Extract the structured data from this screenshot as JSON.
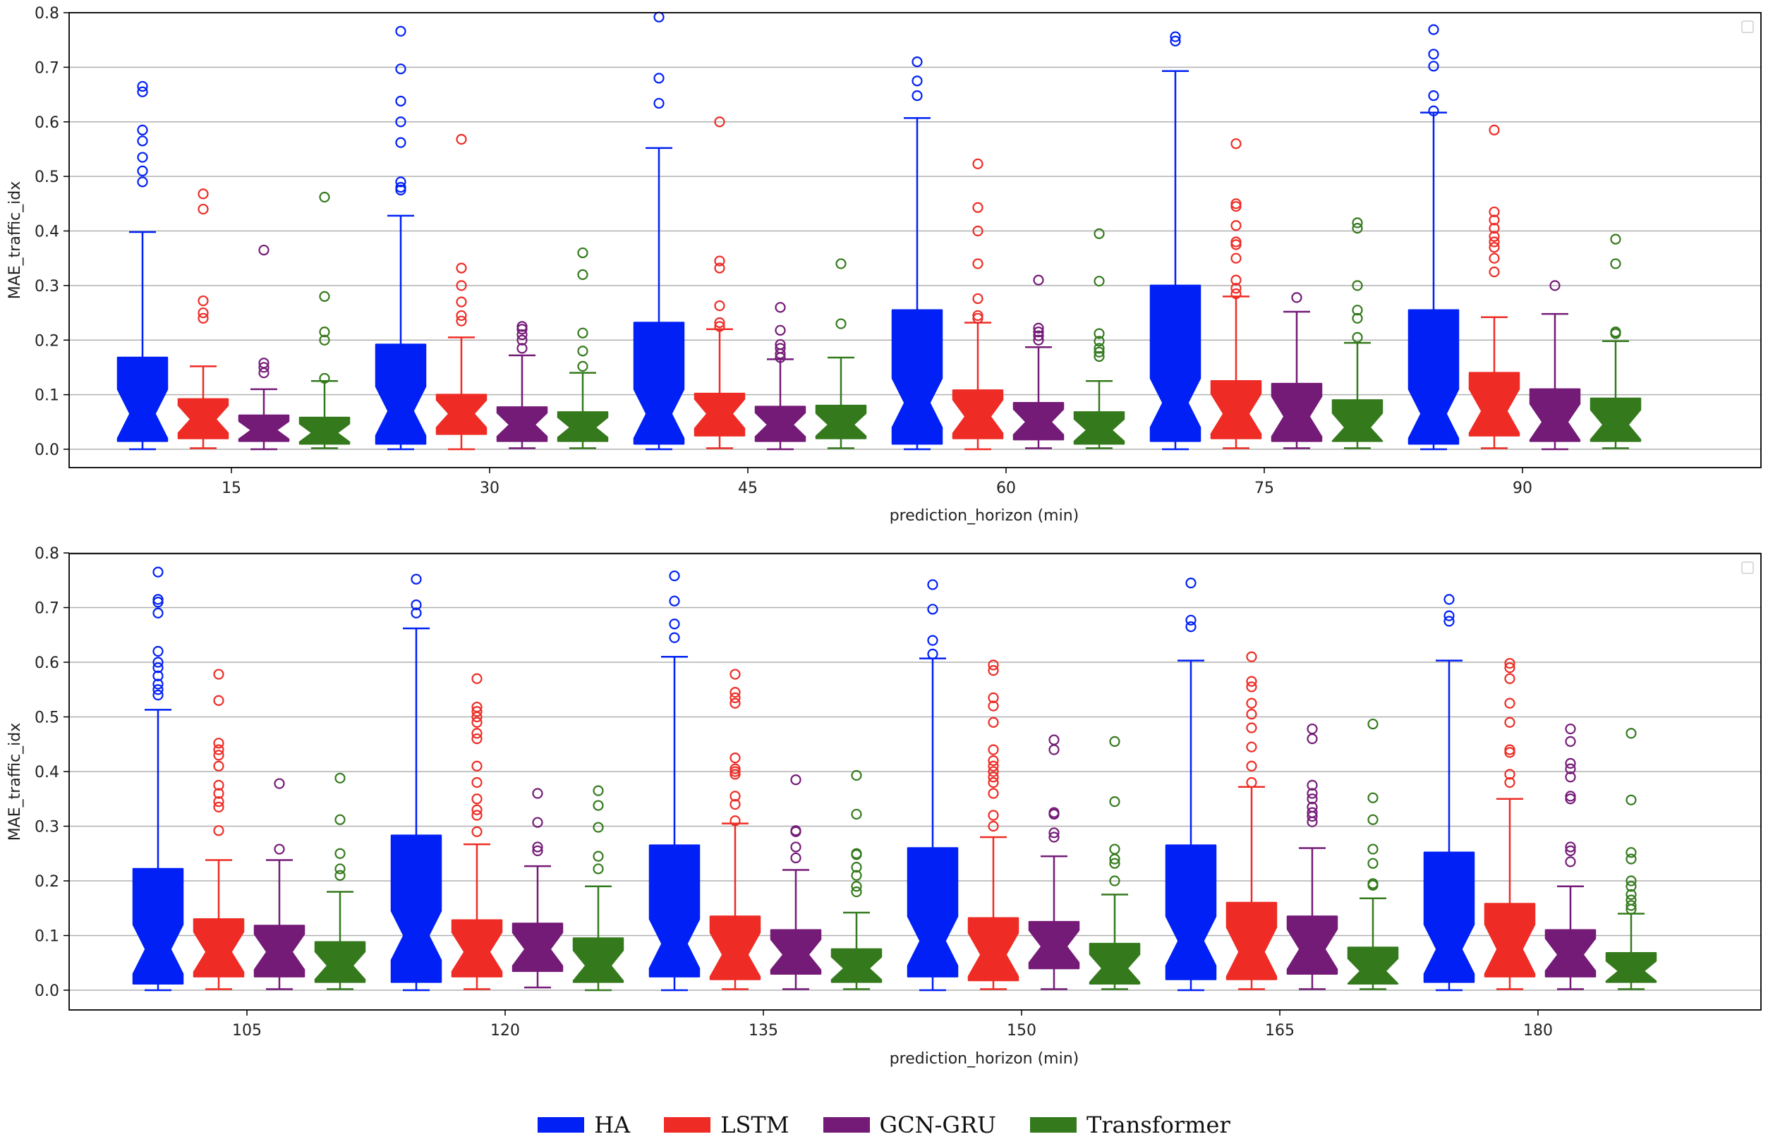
{
  "chart_data": [
    {
      "type": "box",
      "xlabel": "prediction_horizon (min)",
      "ylabel": "MAE_traffic_idx",
      "ylim": [
        0,
        0.8
      ],
      "yticks": [
        "0.0",
        "0.1",
        "0.2",
        "0.3",
        "0.4",
        "0.5",
        "0.6",
        "0.7",
        "0.8"
      ],
      "categories": [
        "15",
        "30",
        "45",
        "60",
        "75",
        "90"
      ],
      "series": [
        {
          "name": "HA",
          "boxes": [
            {
              "whislo": 0.0,
              "q1": 0.015,
              "med": 0.065,
              "q3": 0.168,
              "whishi": 0.398,
              "fliers": [
                0.49,
                0.51,
                0.535,
                0.565,
                0.585,
                0.655,
                0.665
              ]
            },
            {
              "whislo": 0.0,
              "q1": 0.01,
              "med": 0.07,
              "q3": 0.192,
              "whishi": 0.428,
              "fliers": [
                0.475,
                0.48,
                0.49,
                0.562,
                0.6,
                0.638,
                0.697,
                0.766
              ]
            },
            {
              "whislo": 0.0,
              "q1": 0.01,
              "med": 0.065,
              "q3": 0.232,
              "whishi": 0.552,
              "fliers": [
                0.634,
                0.68,
                0.792
              ]
            },
            {
              "whislo": 0.0,
              "q1": 0.01,
              "med": 0.085,
              "q3": 0.255,
              "whishi": 0.607,
              "fliers": [
                0.648,
                0.675,
                0.71
              ]
            },
            {
              "whislo": 0.0,
              "q1": 0.015,
              "med": 0.085,
              "q3": 0.3,
              "whishi": 0.693,
              "fliers": [
                0.748,
                0.756
              ]
            },
            {
              "whislo": 0.0,
              "q1": 0.01,
              "med": 0.065,
              "q3": 0.255,
              "whishi": 0.617,
              "fliers": [
                0.62,
                0.648,
                0.702,
                0.724,
                0.769
              ]
            }
          ]
        },
        {
          "name": "LSTM",
          "boxes": [
            {
              "whislo": 0.002,
              "q1": 0.02,
              "med": 0.055,
              "q3": 0.092,
              "whishi": 0.152,
              "fliers": [
                0.24,
                0.25,
                0.272,
                0.44,
                0.468
              ]
            },
            {
              "whislo": 0.0,
              "q1": 0.028,
              "med": 0.065,
              "q3": 0.1,
              "whishi": 0.205,
              "fliers": [
                0.235,
                0.245,
                0.27,
                0.3,
                0.332,
                0.568
              ]
            },
            {
              "whislo": 0.002,
              "q1": 0.025,
              "med": 0.065,
              "q3": 0.102,
              "whishi": 0.22,
              "fliers": [
                0.225,
                0.232,
                0.263,
                0.332,
                0.345,
                0.6
              ]
            },
            {
              "whislo": 0.0,
              "q1": 0.02,
              "med": 0.06,
              "q3": 0.108,
              "whishi": 0.232,
              "fliers": [
                0.24,
                0.245,
                0.276,
                0.34,
                0.4,
                0.443,
                0.523
              ]
            },
            {
              "whislo": 0.002,
              "q1": 0.02,
              "med": 0.065,
              "q3": 0.125,
              "whishi": 0.28,
              "fliers": [
                0.285,
                0.295,
                0.31,
                0.35,
                0.375,
                0.38,
                0.41,
                0.445,
                0.45,
                0.56
              ]
            },
            {
              "whislo": 0.002,
              "q1": 0.025,
              "med": 0.07,
              "q3": 0.14,
              "whishi": 0.242,
              "fliers": [
                0.325,
                0.35,
                0.37,
                0.38,
                0.39,
                0.405,
                0.42,
                0.435,
                0.585
              ]
            }
          ]
        },
        {
          "name": "GCN-GRU",
          "boxes": [
            {
              "whislo": 0.0,
              "q1": 0.015,
              "med": 0.035,
              "q3": 0.062,
              "whishi": 0.11,
              "fliers": [
                0.14,
                0.15,
                0.158,
                0.365
              ]
            },
            {
              "whislo": 0.002,
              "q1": 0.015,
              "med": 0.045,
              "q3": 0.077,
              "whishi": 0.172,
              "fliers": [
                0.185,
                0.2,
                0.21,
                0.22,
                0.225
              ]
            },
            {
              "whislo": 0.0,
              "q1": 0.015,
              "med": 0.045,
              "q3": 0.078,
              "whishi": 0.165,
              "fliers": [
                0.168,
                0.175,
                0.185,
                0.192,
                0.218,
                0.26
              ]
            },
            {
              "whislo": 0.002,
              "q1": 0.018,
              "med": 0.05,
              "q3": 0.085,
              "whishi": 0.187,
              "fliers": [
                0.2,
                0.208,
                0.215,
                0.222,
                0.31
              ]
            },
            {
              "whislo": 0.002,
              "q1": 0.015,
              "med": 0.06,
              "q3": 0.12,
              "whishi": 0.252,
              "fliers": [
                0.278
              ]
            },
            {
              "whislo": 0.0,
              "q1": 0.015,
              "med": 0.05,
              "q3": 0.11,
              "whishi": 0.248,
              "fliers": [
                0.3
              ]
            }
          ]
        },
        {
          "name": "Transformer",
          "boxes": [
            {
              "whislo": 0.002,
              "q1": 0.01,
              "med": 0.03,
              "q3": 0.058,
              "whishi": 0.125,
              "fliers": [
                0.13,
                0.2,
                0.215,
                0.28,
                0.462
              ]
            },
            {
              "whislo": 0.002,
              "q1": 0.015,
              "med": 0.04,
              "q3": 0.068,
              "whishi": 0.14,
              "fliers": [
                0.152,
                0.18,
                0.213,
                0.32,
                0.36
              ]
            },
            {
              "whislo": 0.002,
              "q1": 0.02,
              "med": 0.045,
              "q3": 0.08,
              "whishi": 0.168,
              "fliers": [
                0.23,
                0.34
              ]
            },
            {
              "whislo": 0.002,
              "q1": 0.01,
              "med": 0.035,
              "q3": 0.068,
              "whishi": 0.125,
              "fliers": [
                0.17,
                0.178,
                0.185,
                0.198,
                0.212,
                0.308,
                0.395
              ]
            },
            {
              "whislo": 0.002,
              "q1": 0.015,
              "med": 0.04,
              "q3": 0.09,
              "whishi": 0.195,
              "fliers": [
                0.205,
                0.24,
                0.255,
                0.3,
                0.405,
                0.415
              ]
            },
            {
              "whislo": 0.002,
              "q1": 0.015,
              "med": 0.045,
              "q3": 0.093,
              "whishi": 0.198,
              "fliers": [
                0.212,
                0.215,
                0.34,
                0.385
              ]
            }
          ]
        }
      ]
    },
    {
      "type": "box",
      "xlabel": "prediction_horizon (min)",
      "ylabel": "MAE_traffic_idx",
      "ylim": [
        0,
        0.8
      ],
      "yticks": [
        "0.0",
        "0.1",
        "0.2",
        "0.3",
        "0.4",
        "0.5",
        "0.6",
        "0.7",
        "0.8"
      ],
      "categories": [
        "105",
        "120",
        "135",
        "150",
        "165",
        "180"
      ],
      "series": [
        {
          "name": "HA",
          "boxes": [
            {
              "whislo": 0.0,
              "q1": 0.012,
              "med": 0.075,
              "q3": 0.222,
              "whishi": 0.513,
              "fliers": [
                0.54,
                0.55,
                0.56,
                0.575,
                0.59,
                0.6,
                0.62,
                0.69,
                0.71,
                0.715,
                0.765
              ]
            },
            {
              "whislo": 0.0,
              "q1": 0.015,
              "med": 0.1,
              "q3": 0.283,
              "whishi": 0.662,
              "fliers": [
                0.69,
                0.705,
                0.752
              ]
            },
            {
              "whislo": 0.0,
              "q1": 0.025,
              "med": 0.085,
              "q3": 0.265,
              "whishi": 0.61,
              "fliers": [
                0.645,
                0.67,
                0.712,
                0.758
              ]
            },
            {
              "whislo": 0.0,
              "q1": 0.025,
              "med": 0.09,
              "q3": 0.26,
              "whishi": 0.607,
              "fliers": [
                0.615,
                0.64,
                0.697,
                0.742
              ]
            },
            {
              "whislo": 0.0,
              "q1": 0.02,
              "med": 0.09,
              "q3": 0.265,
              "whishi": 0.603,
              "fliers": [
                0.665,
                0.677,
                0.745
              ]
            },
            {
              "whislo": 0.0,
              "q1": 0.015,
              "med": 0.075,
              "q3": 0.252,
              "whishi": 0.603,
              "fliers": [
                0.675,
                0.685,
                0.715
              ]
            }
          ]
        },
        {
          "name": "LSTM",
          "boxes": [
            {
              "whislo": 0.002,
              "q1": 0.025,
              "med": 0.07,
              "q3": 0.13,
              "whishi": 0.238,
              "fliers": [
                0.292,
                0.335,
                0.345,
                0.36,
                0.375,
                0.41,
                0.43,
                0.44,
                0.452,
                0.53,
                0.578
              ]
            },
            {
              "whislo": 0.002,
              "q1": 0.025,
              "med": 0.07,
              "q3": 0.128,
              "whishi": 0.267,
              "fliers": [
                0.29,
                0.32,
                0.33,
                0.35,
                0.38,
                0.41,
                0.46,
                0.47,
                0.49,
                0.5,
                0.51,
                0.518,
                0.57
              ]
            },
            {
              "whislo": 0.002,
              "q1": 0.02,
              "med": 0.065,
              "q3": 0.135,
              "whishi": 0.305,
              "fliers": [
                0.31,
                0.34,
                0.355,
                0.395,
                0.4,
                0.405,
                0.425,
                0.525,
                0.535,
                0.545,
                0.578
              ]
            },
            {
              "whislo": 0.002,
              "q1": 0.018,
              "med": 0.065,
              "q3": 0.132,
              "whishi": 0.28,
              "fliers": [
                0.3,
                0.32,
                0.36,
                0.38,
                0.39,
                0.4,
                0.41,
                0.42,
                0.44,
                0.49,
                0.52,
                0.535,
                0.585,
                0.595
              ]
            },
            {
              "whislo": 0.002,
              "q1": 0.02,
              "med": 0.07,
              "q3": 0.16,
              "whishi": 0.372,
              "fliers": [
                0.38,
                0.41,
                0.445,
                0.48,
                0.505,
                0.525,
                0.555,
                0.565,
                0.61
              ]
            },
            {
              "whislo": 0.002,
              "q1": 0.025,
              "med": 0.075,
              "q3": 0.158,
              "whishi": 0.35,
              "fliers": [
                0.38,
                0.395,
                0.435,
                0.44,
                0.49,
                0.525,
                0.57,
                0.59,
                0.598
              ]
            }
          ]
        },
        {
          "name": "GCN-GRU",
          "boxes": [
            {
              "whislo": 0.002,
              "q1": 0.025,
              "med": 0.07,
              "q3": 0.118,
              "whishi": 0.238,
              "fliers": [
                0.258,
                0.378
              ]
            },
            {
              "whislo": 0.005,
              "q1": 0.035,
              "med": 0.075,
              "q3": 0.122,
              "whishi": 0.227,
              "fliers": [
                0.255,
                0.262,
                0.307,
                0.36
              ]
            },
            {
              "whislo": 0.002,
              "q1": 0.03,
              "med": 0.065,
              "q3": 0.11,
              "whishi": 0.22,
              "fliers": [
                0.242,
                0.262,
                0.29,
                0.292,
                0.385
              ]
            },
            {
              "whislo": 0.002,
              "q1": 0.04,
              "med": 0.08,
              "q3": 0.125,
              "whishi": 0.245,
              "fliers": [
                0.28,
                0.288,
                0.322,
                0.325,
                0.44,
                0.458
              ]
            },
            {
              "whislo": 0.002,
              "q1": 0.03,
              "med": 0.075,
              "q3": 0.135,
              "whishi": 0.26,
              "fliers": [
                0.308,
                0.318,
                0.325,
                0.335,
                0.35,
                0.36,
                0.375,
                0.46,
                0.478
              ]
            },
            {
              "whislo": 0.002,
              "q1": 0.025,
              "med": 0.065,
              "q3": 0.11,
              "whishi": 0.19,
              "fliers": [
                0.235,
                0.255,
                0.262,
                0.35,
                0.355,
                0.39,
                0.405,
                0.415,
                0.455,
                0.478
              ]
            }
          ]
        },
        {
          "name": "Transformer",
          "boxes": [
            {
              "whislo": 0.002,
              "q1": 0.015,
              "med": 0.045,
              "q3": 0.088,
              "whishi": 0.18,
              "fliers": [
                0.21,
                0.222,
                0.25,
                0.312,
                0.388
              ]
            },
            {
              "whislo": 0.0,
              "q1": 0.015,
              "med": 0.045,
              "q3": 0.095,
              "whishi": 0.19,
              "fliers": [
                0.222,
                0.245,
                0.298,
                0.338,
                0.365
              ]
            },
            {
              "whislo": 0.002,
              "q1": 0.015,
              "med": 0.04,
              "q3": 0.075,
              "whishi": 0.142,
              "fliers": [
                0.18,
                0.19,
                0.21,
                0.225,
                0.248,
                0.25,
                0.322,
                0.393
              ]
            },
            {
              "whislo": 0.002,
              "q1": 0.012,
              "med": 0.04,
              "q3": 0.085,
              "whishi": 0.175,
              "fliers": [
                0.2,
                0.232,
                0.24,
                0.258,
                0.345,
                0.455
              ]
            },
            {
              "whislo": 0.002,
              "q1": 0.012,
              "med": 0.035,
              "q3": 0.078,
              "whishi": 0.168,
              "fliers": [
                0.192,
                0.195,
                0.232,
                0.258,
                0.312,
                0.352,
                0.487
              ]
            },
            {
              "whislo": 0.002,
              "q1": 0.015,
              "med": 0.035,
              "q3": 0.068,
              "whishi": 0.14,
              "fliers": [
                0.148,
                0.155,
                0.165,
                0.175,
                0.19,
                0.2,
                0.24,
                0.252,
                0.348,
                0.47
              ]
            }
          ]
        }
      ]
    }
  ],
  "legend": {
    "items": [
      {
        "label": "HA",
        "color": "#0020f5"
      },
      {
        "label": "LSTM",
        "color": "#ee2c25"
      },
      {
        "label": "GCN-GRU",
        "color": "#741a77"
      },
      {
        "label": "Transformer",
        "color": "#347a1d"
      }
    ]
  }
}
